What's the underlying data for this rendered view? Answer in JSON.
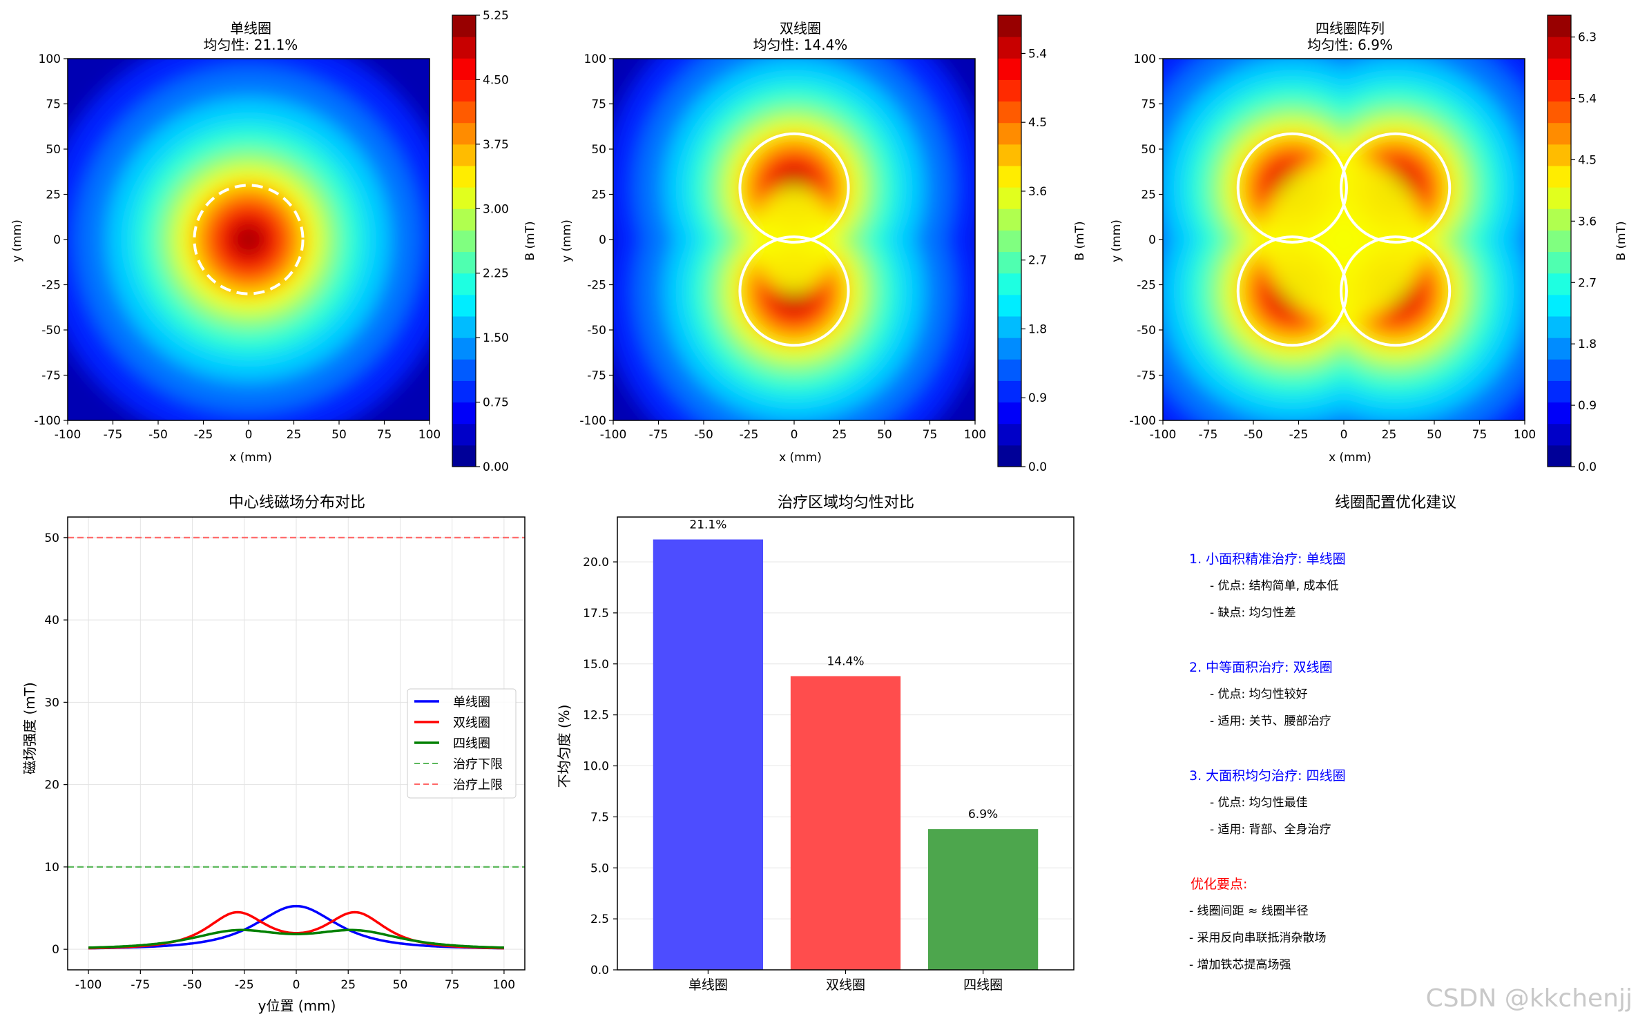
{
  "heatmaps": [
    {
      "title": "单线圈",
      "subtitle": "均匀性: 21.1%",
      "xlabel": "x (mm)",
      "ylabel": "y (mm)",
      "cbar_label": "B (mT)",
      "xlim": [
        -100,
        100
      ],
      "ylim": [
        -100,
        100
      ],
      "ticks": [
        "-100",
        "-75",
        "-50",
        "-25",
        "0",
        "25",
        "50",
        "75",
        "100"
      ],
      "cbar_ticks": [
        "0.00",
        "0.75",
        "1.50",
        "2.25",
        "3.00",
        "3.75",
        "4.50",
        "5.25"
      ]
    },
    {
      "title": "双线圈",
      "subtitle": "均匀性: 14.4%",
      "xlabel": "x (mm)",
      "ylabel": "y (mm)",
      "cbar_label": "B (mT)",
      "xlim": [
        -100,
        100
      ],
      "ylim": [
        -100,
        100
      ],
      "ticks": [
        "-100",
        "-75",
        "-50",
        "-25",
        "0",
        "25",
        "50",
        "75",
        "100"
      ],
      "cbar_ticks": [
        "0.0",
        "0.9",
        "1.8",
        "2.7",
        "3.6",
        "4.5",
        "5.4"
      ]
    },
    {
      "title": "四线圈阵列",
      "subtitle": "均匀性: 6.9%",
      "xlabel": "x (mm)",
      "ylabel": "y (mm)",
      "cbar_label": "B (mT)",
      "xlim": [
        -100,
        100
      ],
      "ylim": [
        -100,
        100
      ],
      "ticks": [
        "-100",
        "-75",
        "-50",
        "-25",
        "0",
        "25",
        "50",
        "75",
        "100"
      ],
      "cbar_ticks": [
        "0.0",
        "0.9",
        "1.8",
        "2.7",
        "3.6",
        "4.5",
        "5.4",
        "6.3"
      ]
    }
  ],
  "line_chart": {
    "title": "中心线磁场分布对比",
    "xlabel": "y位置 (mm)",
    "ylabel": "磁场强度 (mT)",
    "xlim": [
      -110,
      110
    ],
    "ylim": [
      -2.5,
      52.5
    ],
    "xticks": [
      "-100",
      "-75",
      "-50",
      "-25",
      "0",
      "25",
      "50",
      "75",
      "100"
    ],
    "yticks": [
      "0",
      "10",
      "20",
      "30",
      "40",
      "50"
    ],
    "legend": [
      "单线圈",
      "双线圈",
      "四线圈",
      "治疗下限",
      "治疗上限"
    ],
    "colors": {
      "single": "#0000ff",
      "double": "#ff0000",
      "quad": "#008000",
      "lower": "#5cb85c",
      "upper": "#ff6666"
    }
  },
  "chart_data": {
    "type": "bar",
    "title": "治疗区域均匀性对比",
    "xlabel": "",
    "ylabel": "不均匀度 (%)",
    "categories": [
      "单线圈",
      "双线圈",
      "四线圈"
    ],
    "values": [
      21.1,
      14.4,
      6.9
    ],
    "value_labels": [
      "21.1%",
      "14.4%",
      "6.9%"
    ],
    "colors": [
      "#4d4dff",
      "#ff4d4d",
      "#4da64d"
    ],
    "ylim": [
      0,
      22.2
    ],
    "yticks": [
      "0.0",
      "2.5",
      "5.0",
      "7.5",
      "10.0",
      "12.5",
      "15.0",
      "17.5",
      "20.0"
    ]
  },
  "recommendations": {
    "title": "线圈配置优化建议",
    "items": [
      {
        "heading": "1. 小面积精准治疗: 单线圈",
        "lines": [
          "- 优点: 结构简单, 成本低",
          "- 缺点: 均匀性差"
        ]
      },
      {
        "heading": "2. 中等面积治疗: 双线圈",
        "lines": [
          "- 优点: 均匀性较好",
          "- 适用: 关节、腰部治疗"
        ]
      },
      {
        "heading": "3. 大面积均匀治疗: 四线圈",
        "lines": [
          "- 优点: 均匀性最佳",
          "- 适用: 背部、全身治疗"
        ]
      }
    ],
    "key_heading": "优化要点:",
    "key_lines": [
      "- 线圈间距 ≈ 线圈半径",
      "- 采用反向串联抵消杂散场",
      "- 增加铁芯提高场强"
    ],
    "heading_color": "#0000ff",
    "key_color": "#ff0000"
  },
  "watermark": "CSDN @kkchenjj"
}
